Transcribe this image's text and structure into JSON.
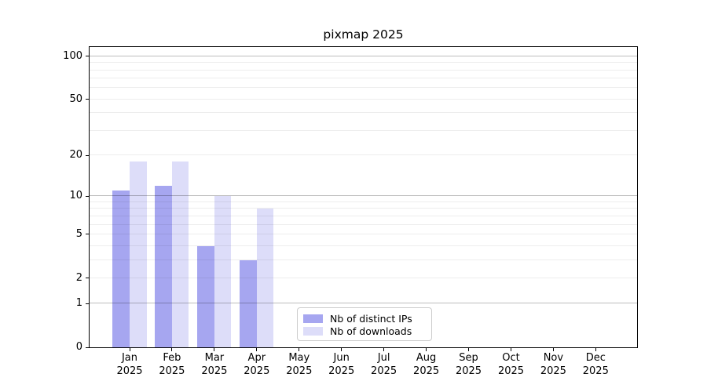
{
  "chart_data": {
    "type": "bar",
    "title": "pixmap 2025",
    "categories": [
      {
        "month": "Jan",
        "year": "2025"
      },
      {
        "month": "Feb",
        "year": "2025"
      },
      {
        "month": "Mar",
        "year": "2025"
      },
      {
        "month": "Apr",
        "year": "2025"
      },
      {
        "month": "May",
        "year": "2025"
      },
      {
        "month": "Jun",
        "year": "2025"
      },
      {
        "month": "Jul",
        "year": "2025"
      },
      {
        "month": "Aug",
        "year": "2025"
      },
      {
        "month": "Sep",
        "year": "2025"
      },
      {
        "month": "Oct",
        "year": "2025"
      },
      {
        "month": "Nov",
        "year": "2025"
      },
      {
        "month": "Dec",
        "year": "2025"
      }
    ],
    "series": [
      {
        "name": "Nb of distinct IPs",
        "color": "#a6a6f0",
        "values": [
          11,
          12,
          4,
          3,
          0,
          0,
          0,
          0,
          0,
          0,
          0,
          0
        ]
      },
      {
        "name": "Nb of downloads",
        "color": "#ddddf9",
        "values": [
          18,
          18,
          10,
          8,
          0,
          0,
          0,
          0,
          0,
          0,
          0,
          0
        ]
      }
    ],
    "xlabel": "",
    "ylabel": "",
    "yscale": "log1p",
    "ylim": [
      0,
      116
    ],
    "y_ticks": [
      0,
      1,
      2,
      5,
      10,
      20,
      50,
      100
    ],
    "grid": {
      "on": true,
      "drawn_above_bars": true,
      "major_lines": [
        1,
        10,
        100
      ],
      "minor_lines": [
        2,
        3,
        4,
        5,
        6,
        7,
        8,
        9,
        20,
        30,
        40,
        50,
        60,
        70,
        80,
        90
      ]
    },
    "legend": {
      "position": "lower-center",
      "entries": [
        "Nb of distinct IPs",
        "Nb of downloads"
      ]
    }
  }
}
